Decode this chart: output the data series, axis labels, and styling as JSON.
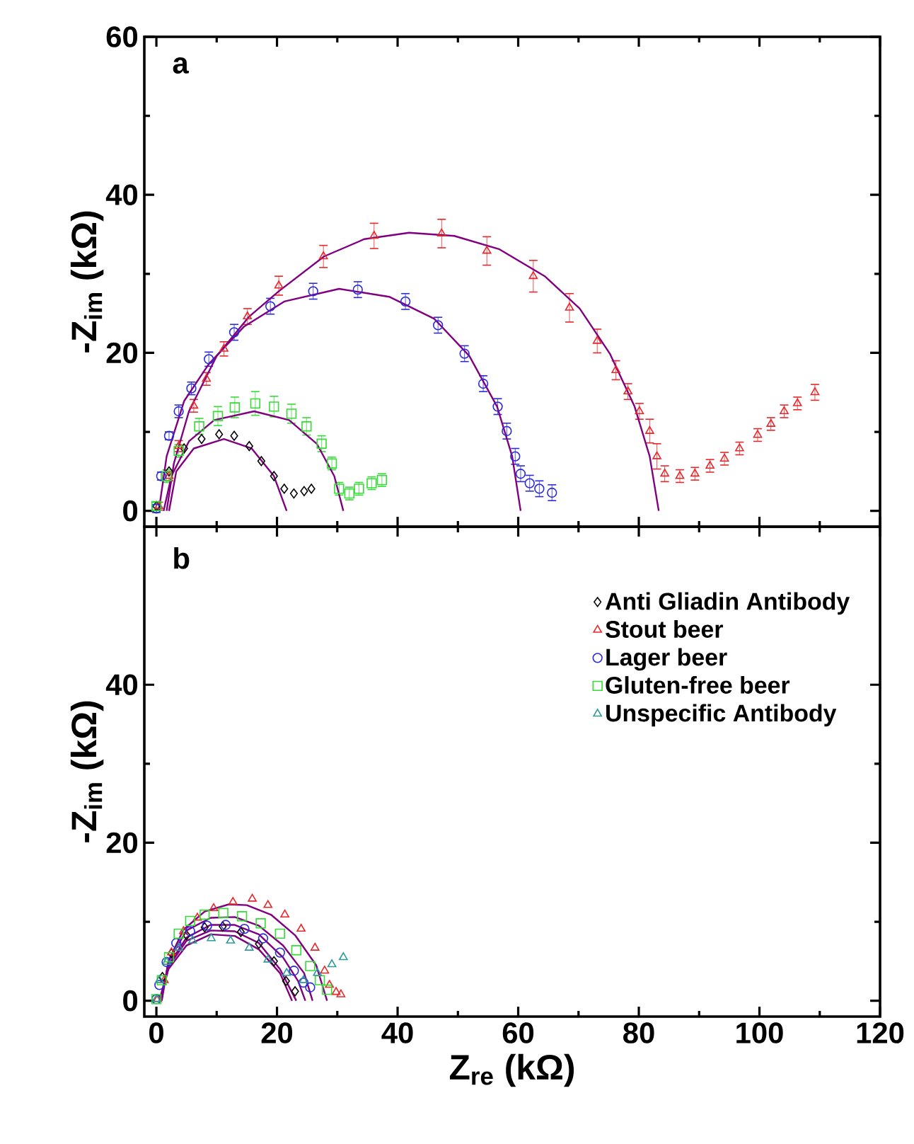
{
  "chart_data": [
    {
      "type": "scatter",
      "ylabel": "-Z$_{im}$ (kΩ)",
      "annotations": [
        "a"
      ],
      "xlim": [
        -2,
        120
      ],
      "ylim": [
        -2,
        60
      ],
      "xticks": [
        0,
        20,
        40,
        60,
        80,
        100,
        120
      ],
      "yticks": [
        0,
        20,
        40,
        60
      ],
      "tick_labels": "y",
      "legend": false,
      "series": [
        {
          "color": "#000000",
          "marker": "diamond",
          "x": [
            0,
            2.1,
            4.6,
            7.5,
            10.4,
            12.9,
            15.4,
            17.4,
            19.5,
            21.2,
            22.8,
            24.5,
            25.7
          ],
          "values": [
            0.6,
            5,
            7.9,
            9.1,
            9.7,
            9.5,
            8.2,
            6.3,
            4.4,
            2.8,
            2.2,
            2.5,
            2.8
          ]
        },
        {
          "color": "#e8272a",
          "marker": "triangle",
          "x": [
            0.4,
            2.1,
            3.7,
            6.2,
            8.3,
            11.2,
            15.1,
            20.3,
            27.7,
            36.1,
            47.3,
            54.8,
            62.5,
            68.5,
            73.1,
            76.2,
            78.2,
            80.1,
            81.8,
            83,
            84.3,
            86.8,
            89.3,
            91.8,
            94.2,
            96.7,
            99.7,
            101.9,
            104.1,
            106.3,
            109.2
          ],
          "values": [
            0.6,
            4.4,
            8.2,
            13.3,
            16.7,
            20.5,
            24.6,
            28.5,
            32.2,
            34.8,
            35.1,
            32.9,
            29.7,
            25.7,
            21.5,
            17.8,
            15.1,
            12.6,
            10.1,
            6.9,
            4.7,
            4.4,
            4.7,
            5.7,
            6.6,
            7.9,
            9.6,
            11,
            12.6,
            13.6,
            15
          ],
          "errors": [
            0.5,
            0.6,
            0.7,
            0.8,
            0.8,
            0.9,
            1,
            1.2,
            1.4,
            1.6,
            1.8,
            1.8,
            2,
            1.8,
            1.5,
            1.2,
            1,
            1,
            1.5,
            1.6,
            1,
            0.8,
            0.8,
            0.8,
            0.8,
            0.8,
            0.8,
            0.8,
            0.8,
            0.8,
            1
          ]
        },
        {
          "color": "#2b2bdb",
          "marker": "circle",
          "x": [
            0,
            0.8,
            2.1,
            3.7,
            5.8,
            8.7,
            12.9,
            18.9,
            26,
            33.4,
            41.3,
            46.7,
            51.1,
            54.2,
            56.6,
            58.1,
            59.5,
            60.4,
            61.9,
            63.5,
            65.6
          ],
          "values": [
            0.3,
            4.4,
            9.5,
            12.6,
            15.5,
            19.2,
            22.6,
            25.9,
            27.8,
            28,
            26.5,
            23.5,
            19.9,
            16.1,
            13.2,
            10.1,
            6.9,
            4.7,
            3.5,
            2.8,
            2.3
          ],
          "errors": [
            0.5,
            0.5,
            0.5,
            0.8,
            0.8,
            0.9,
            1,
            1,
            1,
            1,
            1,
            1,
            1,
            1,
            1,
            1,
            1,
            1,
            1,
            1,
            1
          ]
        },
        {
          "color": "#33dd33",
          "marker": "square",
          "x": [
            0,
            1.7,
            3.7,
            7.1,
            10.2,
            13,
            16.4,
            19.5,
            22.4,
            24.9,
            27.4,
            29.1,
            30.3,
            32,
            33.6,
            35.7,
            37.4
          ],
          "values": [
            0.6,
            4.4,
            7.6,
            10.7,
            12,
            13.1,
            13.6,
            13.2,
            12.3,
            10.7,
            8.5,
            6,
            2.8,
            2.2,
            2.8,
            3.5,
            3.9
          ],
          "errors": [
            0.5,
            0.8,
            0.8,
            1,
            1.2,
            1.3,
            1.5,
            1.3,
            1.2,
            1.1,
            1,
            0.8,
            0.8,
            0.8,
            0.8,
            0.8,
            0.8
          ]
        },
        {
          "type": "line",
          "color": "#800080",
          "x": [
            1.7,
            2.9,
            5.4,
            10,
            15.4,
            20.3,
            27.8,
            34.5,
            41.9,
            49.4,
            56.9,
            64.4,
            70.2,
            75.2,
            79.3,
            81.8,
            83.3
          ],
          "values": [
            0,
            6,
            12.6,
            19.6,
            24.6,
            27.8,
            32.2,
            34.4,
            35.2,
            34.8,
            33.1,
            29.7,
            25.6,
            19.9,
            13.2,
            6.9,
            0
          ]
        },
        {
          "type": "line",
          "color": "#800080",
          "x": [
            0.4,
            1.7,
            4.6,
            8.7,
            14.5,
            21.2,
            30.3,
            38.6,
            46.1,
            51.9,
            56.5,
            59,
            60.4
          ],
          "values": [
            0,
            6.9,
            13.9,
            18.6,
            23.3,
            26.5,
            28.1,
            27.1,
            24.3,
            19.6,
            13.2,
            6.9,
            0
          ]
        },
        {
          "type": "line",
          "color": "#800080",
          "x": [
            1.2,
            2.5,
            5.4,
            9.6,
            16.2,
            22,
            26.6,
            29.5,
            31
          ],
          "values": [
            0,
            4.4,
            8.8,
            11.5,
            12.6,
            11.5,
            8.5,
            4.4,
            0
          ]
        },
        {
          "type": "line",
          "color": "#800080",
          "x": [
            2.1,
            3.3,
            6.2,
            11.2,
            15.8,
            19.5,
            21.6
          ],
          "values": [
            0,
            5,
            7.9,
            9.1,
            7.9,
            4.4,
            0
          ]
        }
      ]
    },
    {
      "type": "scatter",
      "xlabel": "Z$_{re}$ (kΩ)",
      "ylabel": "-Z$_{im}$ (kΩ)",
      "annotations": [
        "b"
      ],
      "xlim": [
        -2,
        120
      ],
      "ylim": [
        -2,
        60
      ],
      "xticks": [
        0,
        20,
        40,
        60,
        80,
        100,
        120
      ],
      "yticks": [
        0,
        20,
        40
      ],
      "legend": "top right",
      "series": [
        {
          "name": "Anti Gliadin Antibody",
          "color": "#000000",
          "marker": "diamond",
          "x": [
            1,
            2.5,
            5,
            8,
            11,
            14,
            17,
            19.5,
            21.5,
            23
          ],
          "values": [
            3,
            6,
            8.3,
            9.3,
            9.4,
            8.7,
            7.2,
            5,
            2.5,
            1.2
          ]
        },
        {
          "name": "Stout beer",
          "color": "#e8272a",
          "marker": "triangle",
          "x": [
            0.2,
            1.3,
            2.5,
            4.5,
            6.8,
            9.5,
            12.7,
            15.9,
            18.5,
            21.3,
            24,
            26.3,
            27.9,
            28.7,
            29.8,
            30.6
          ],
          "values": [
            0.2,
            2.6,
            6.1,
            8.8,
            10.5,
            11.7,
            12.5,
            12.9,
            12.1,
            10.9,
            9.1,
            6.7,
            3.8,
            2,
            1.1,
            0.8
          ]
        },
        {
          "name": "Lager beer",
          "color": "#2b2bdb",
          "marker": "circle",
          "x": [
            0,
            0.5,
            1.7,
            3.3,
            5.6,
            8.4,
            11.5,
            14.6,
            17.7,
            20.5,
            22.8,
            24.4,
            25.5
          ],
          "values": [
            0.2,
            2,
            4.9,
            7.3,
            8.8,
            9.5,
            9.6,
            9.1,
            7.9,
            6.1,
            3.8,
            2.3,
            1.7
          ]
        },
        {
          "name": "Gluten-free beer",
          "color": "#33dd33",
          "marker": "square",
          "x": [
            0,
            0.9,
            2.1,
            3.7,
            5.6,
            8,
            11.1,
            14.2,
            17.3,
            20.5,
            23.2,
            25.5,
            27.1,
            28.3
          ],
          "values": [
            0.2,
            2.6,
            5.5,
            8.5,
            10.1,
            10.9,
            11.1,
            10.7,
            9.8,
            8.5,
            6.4,
            4.4,
            2.6,
            1.4
          ]
        },
        {
          "name": "Unspecific Antibody",
          "color": "#2e9a9a",
          "marker": "triangle_down",
          "x": [
            0,
            0.5,
            1.7,
            3.7,
            6,
            9.1,
            12.3,
            15.4,
            18.5,
            21.6,
            24.4,
            26.7,
            29.1,
            31
          ],
          "values": [
            0.2,
            2.6,
            4.9,
            6.7,
            7.6,
            7.9,
            7.6,
            6.7,
            5.2,
            3.5,
            2.6,
            3.5,
            4.6,
            5.5
          ]
        },
        {
          "type": "line",
          "color": "#800080",
          "x": [
            0.9,
            2,
            4.5,
            8,
            12,
            15,
            19,
            23,
            26.5,
            28.3
          ],
          "values": [
            0,
            5,
            9,
            11.3,
            12.2,
            12.1,
            10.9,
            8.3,
            4.5,
            0
          ]
        },
        {
          "type": "line",
          "color": "#800080",
          "x": [
            0.8,
            2,
            5,
            9,
            13,
            17,
            21,
            24.5,
            25.9
          ],
          "values": [
            0,
            5,
            8.9,
            10.5,
            10.6,
            9.5,
            7,
            3.5,
            0
          ]
        },
        {
          "type": "line",
          "color": "#800080",
          "x": [
            0.7,
            2,
            5,
            9,
            13,
            17,
            21,
            23.5,
            24.7
          ],
          "values": [
            0,
            4.5,
            8,
            9.6,
            9.6,
            8.4,
            5.5,
            2.5,
            0
          ]
        },
        {
          "type": "line",
          "color": "#800080",
          "x": [
            0.6,
            2,
            5,
            9,
            13,
            17,
            20.5,
            22.5
          ],
          "values": [
            0,
            4,
            7,
            8.4,
            8.2,
            6.5,
            3.5,
            0
          ]
        },
        {
          "type": "line",
          "color": "#800080",
          "x": [
            0.5,
            2,
            5,
            9,
            13,
            17,
            20.5,
            23.2
          ],
          "values": [
            0,
            4.3,
            7.6,
            8.9,
            8.8,
            7.3,
            4,
            0
          ]
        }
      ]
    }
  ]
}
